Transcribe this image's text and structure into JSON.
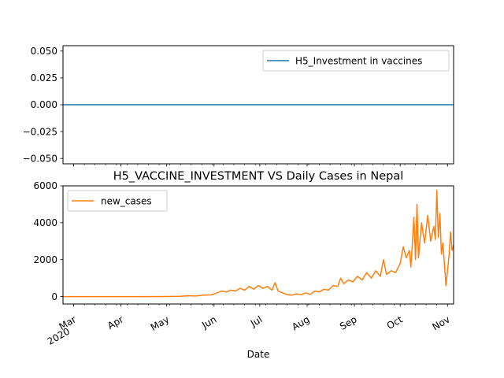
{
  "chart_data": [
    {
      "type": "line",
      "title": "",
      "xlabel": "",
      "ylabel": "",
      "ylim": [
        -0.055,
        0.055
      ],
      "yticks": [
        "0.050",
        "0.025",
        "0.000",
        "−0.025",
        "−0.050"
      ],
      "ytick_values": [
        0.05,
        0.025,
        0.0,
        -0.025,
        -0.05
      ],
      "legend_position": "upper right",
      "grid": false,
      "series": [
        {
          "name": "H5_Investment in vaccines",
          "color": "#1f77b4",
          "values": [
            0,
            0
          ]
        }
      ]
    },
    {
      "type": "line",
      "title": "H5_VACCINE_INVESTMENT VS Daily Cases in Nepal",
      "xlabel": "Date",
      "ylabel": "",
      "ylim": [
        -400,
        6000
      ],
      "yticks": [
        "0",
        "2000",
        "4000",
        "6000"
      ],
      "ytick_values": [
        0,
        2000,
        4000,
        6000
      ],
      "legend_position": "upper left",
      "grid": false,
      "x_tick_labels": [
        {
          "month": "Mar",
          "year": "2020"
        },
        {
          "month": "Apr",
          "year": ""
        },
        {
          "month": "May",
          "year": ""
        },
        {
          "month": "Jun",
          "year": ""
        },
        {
          "month": "Jul",
          "year": ""
        },
        {
          "month": "Aug",
          "year": ""
        },
        {
          "month": "Sep",
          "year": ""
        },
        {
          "month": "Oct",
          "year": ""
        },
        {
          "month": "Nov",
          "year": ""
        }
      ],
      "series": [
        {
          "name": "new_cases",
          "color": "#ff7f0e",
          "points": [
            [
              "2020-02-23",
              0
            ],
            [
              "2020-03-15",
              0
            ],
            [
              "2020-04-01",
              0
            ],
            [
              "2020-04-15",
              2
            ],
            [
              "2020-05-01",
              5
            ],
            [
              "2020-05-10",
              15
            ],
            [
              "2020-05-15",
              50
            ],
            [
              "2020-05-20",
              30
            ],
            [
              "2020-05-25",
              80
            ],
            [
              "2020-05-30",
              90
            ],
            [
              "2020-06-03",
              200
            ],
            [
              "2020-06-06",
              300
            ],
            [
              "2020-06-09",
              250
            ],
            [
              "2020-06-12",
              350
            ],
            [
              "2020-06-15",
              300
            ],
            [
              "2020-06-18",
              450
            ],
            [
              "2020-06-21",
              350
            ],
            [
              "2020-06-24",
              550
            ],
            [
              "2020-06-27",
              400
            ],
            [
              "2020-06-30",
              600
            ],
            [
              "2020-07-03",
              450
            ],
            [
              "2020-07-06",
              550
            ],
            [
              "2020-07-09",
              350
            ],
            [
              "2020-07-11",
              750
            ],
            [
              "2020-07-13",
              300
            ],
            [
              "2020-07-16",
              200
            ],
            [
              "2020-07-19",
              100
            ],
            [
              "2020-07-22",
              80
            ],
            [
              "2020-07-25",
              150
            ],
            [
              "2020-07-28",
              100
            ],
            [
              "2020-07-31",
              200
            ],
            [
              "2020-08-03",
              120
            ],
            [
              "2020-08-06",
              300
            ],
            [
              "2020-08-09",
              250
            ],
            [
              "2020-08-12",
              400
            ],
            [
              "2020-08-15",
              350
            ],
            [
              "2020-08-18",
              600
            ],
            [
              "2020-08-21",
              550
            ],
            [
              "2020-08-23",
              1000
            ],
            [
              "2020-08-25",
              700
            ],
            [
              "2020-08-28",
              900
            ],
            [
              "2020-08-31",
              800
            ],
            [
              "2020-09-03",
              1100
            ],
            [
              "2020-09-06",
              900
            ],
            [
              "2020-09-09",
              1300
            ],
            [
              "2020-09-12",
              1000
            ],
            [
              "2020-09-15",
              1400
            ],
            [
              "2020-09-18",
              1100
            ],
            [
              "2020-09-20",
              2000
            ],
            [
              "2020-09-22",
              1200
            ],
            [
              "2020-09-25",
              1400
            ],
            [
              "2020-09-28",
              1300
            ],
            [
              "2020-10-01",
              1800
            ],
            [
              "2020-10-03",
              2700
            ],
            [
              "2020-10-05",
              2100
            ],
            [
              "2020-10-07",
              2500
            ],
            [
              "2020-10-08",
              1600
            ],
            [
              "2020-10-10",
              4300
            ],
            [
              "2020-10-11",
              2000
            ],
            [
              "2020-10-12",
              5000
            ],
            [
              "2020-10-13",
              2100
            ],
            [
              "2020-10-15",
              4000
            ],
            [
              "2020-10-17",
              2900
            ],
            [
              "2020-10-19",
              4400
            ],
            [
              "2020-10-21",
              3000
            ],
            [
              "2020-10-23",
              3800
            ],
            [
              "2020-10-24",
              3100
            ],
            [
              "2020-10-25",
              5750
            ],
            [
              "2020-10-26",
              3200
            ],
            [
              "2020-10-27",
              4500
            ],
            [
              "2020-10-28",
              2300
            ],
            [
              "2020-10-29",
              2900
            ],
            [
              "2020-10-31",
              600
            ],
            [
              "2020-11-02",
              2200
            ],
            [
              "2020-11-03",
              3500
            ],
            [
              "2020-11-04",
              2500
            ],
            [
              "2020-11-05",
              2800
            ]
          ]
        }
      ]
    }
  ]
}
